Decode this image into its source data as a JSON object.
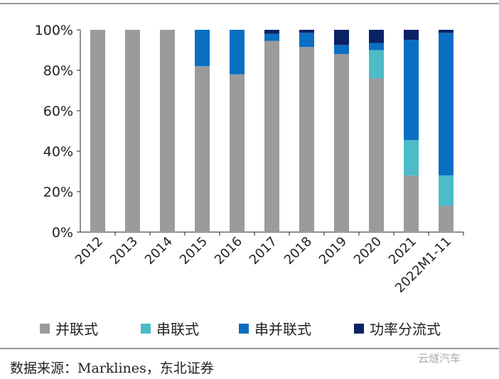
{
  "chart_data": {
    "type": "bar",
    "stacked": true,
    "categories": [
      "2012",
      "2013",
      "2014",
      "2015",
      "2016",
      "2017",
      "2018",
      "2019",
      "2020",
      "2021",
      "2022M1-11"
    ],
    "series": [
      {
        "name": "并联式",
        "color": "#9b9b9b",
        "values": [
          100,
          100,
          100,
          82,
          78,
          94.5,
          91.5,
          88,
          76,
          28,
          13
        ]
      },
      {
        "name": "串联式",
        "color": "#4bbcc8",
        "values": [
          0,
          0,
          0,
          0,
          0,
          0,
          0,
          0,
          14,
          17.5,
          15
        ]
      },
      {
        "name": "串并联式",
        "color": "#0a6fc2",
        "values": [
          0,
          0,
          0,
          18,
          22,
          3.5,
          7,
          4.5,
          3.5,
          49.5,
          70.5
        ]
      },
      {
        "name": "功率分流式",
        "color": "#0b2265",
        "values": [
          0,
          0,
          0,
          0,
          0,
          2,
          1.5,
          7.5,
          6.5,
          5,
          1.5
        ]
      }
    ],
    "yticks": [
      "0%",
      "20%",
      "40%",
      "60%",
      "80%",
      "100%"
    ],
    "ylim": [
      0,
      100
    ],
    "legend": "bottom",
    "grid": false
  },
  "source": "数据来源：Marklines，东北证券",
  "watermark": "云燧汽车"
}
